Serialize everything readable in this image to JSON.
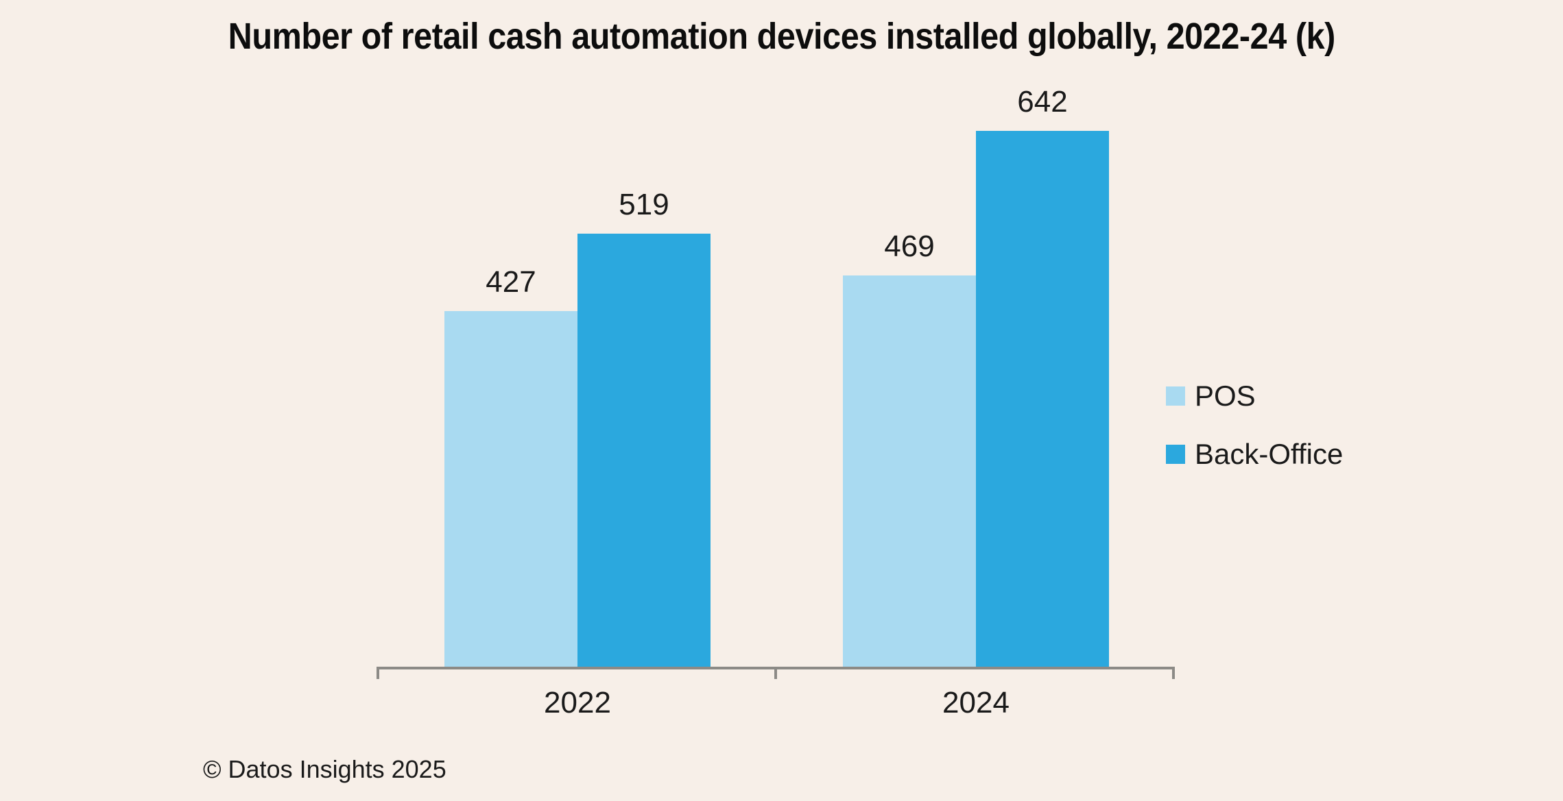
{
  "title": "Number of retail cash automation devices installed globally, 2022-24 (k)",
  "footer": {
    "text": "© Datos Insights 2025"
  },
  "colors": {
    "background": "#F7EFE8",
    "pos": "#A9DAF1",
    "back_office": "#2BA8DE",
    "axis": "#8C8A86",
    "text": "#1a1a1a"
  },
  "chart_data": {
    "type": "bar",
    "title": "Number of retail cash automation devices installed globally, 2022-24 (k)",
    "categories": [
      "2022",
      "2024"
    ],
    "series": [
      {
        "name": "POS",
        "values": [
          427,
          469
        ],
        "color": "#A9DAF1"
      },
      {
        "name": "Back-Office",
        "values": [
          519,
          642
        ],
        "color": "#2BA8DE"
      }
    ],
    "xlabel": "",
    "ylabel": "",
    "ylim": [
      0,
      700
    ],
    "grid": false,
    "data_labels": true,
    "legend_position": "right",
    "source_note": "© Datos Insights 2025"
  }
}
